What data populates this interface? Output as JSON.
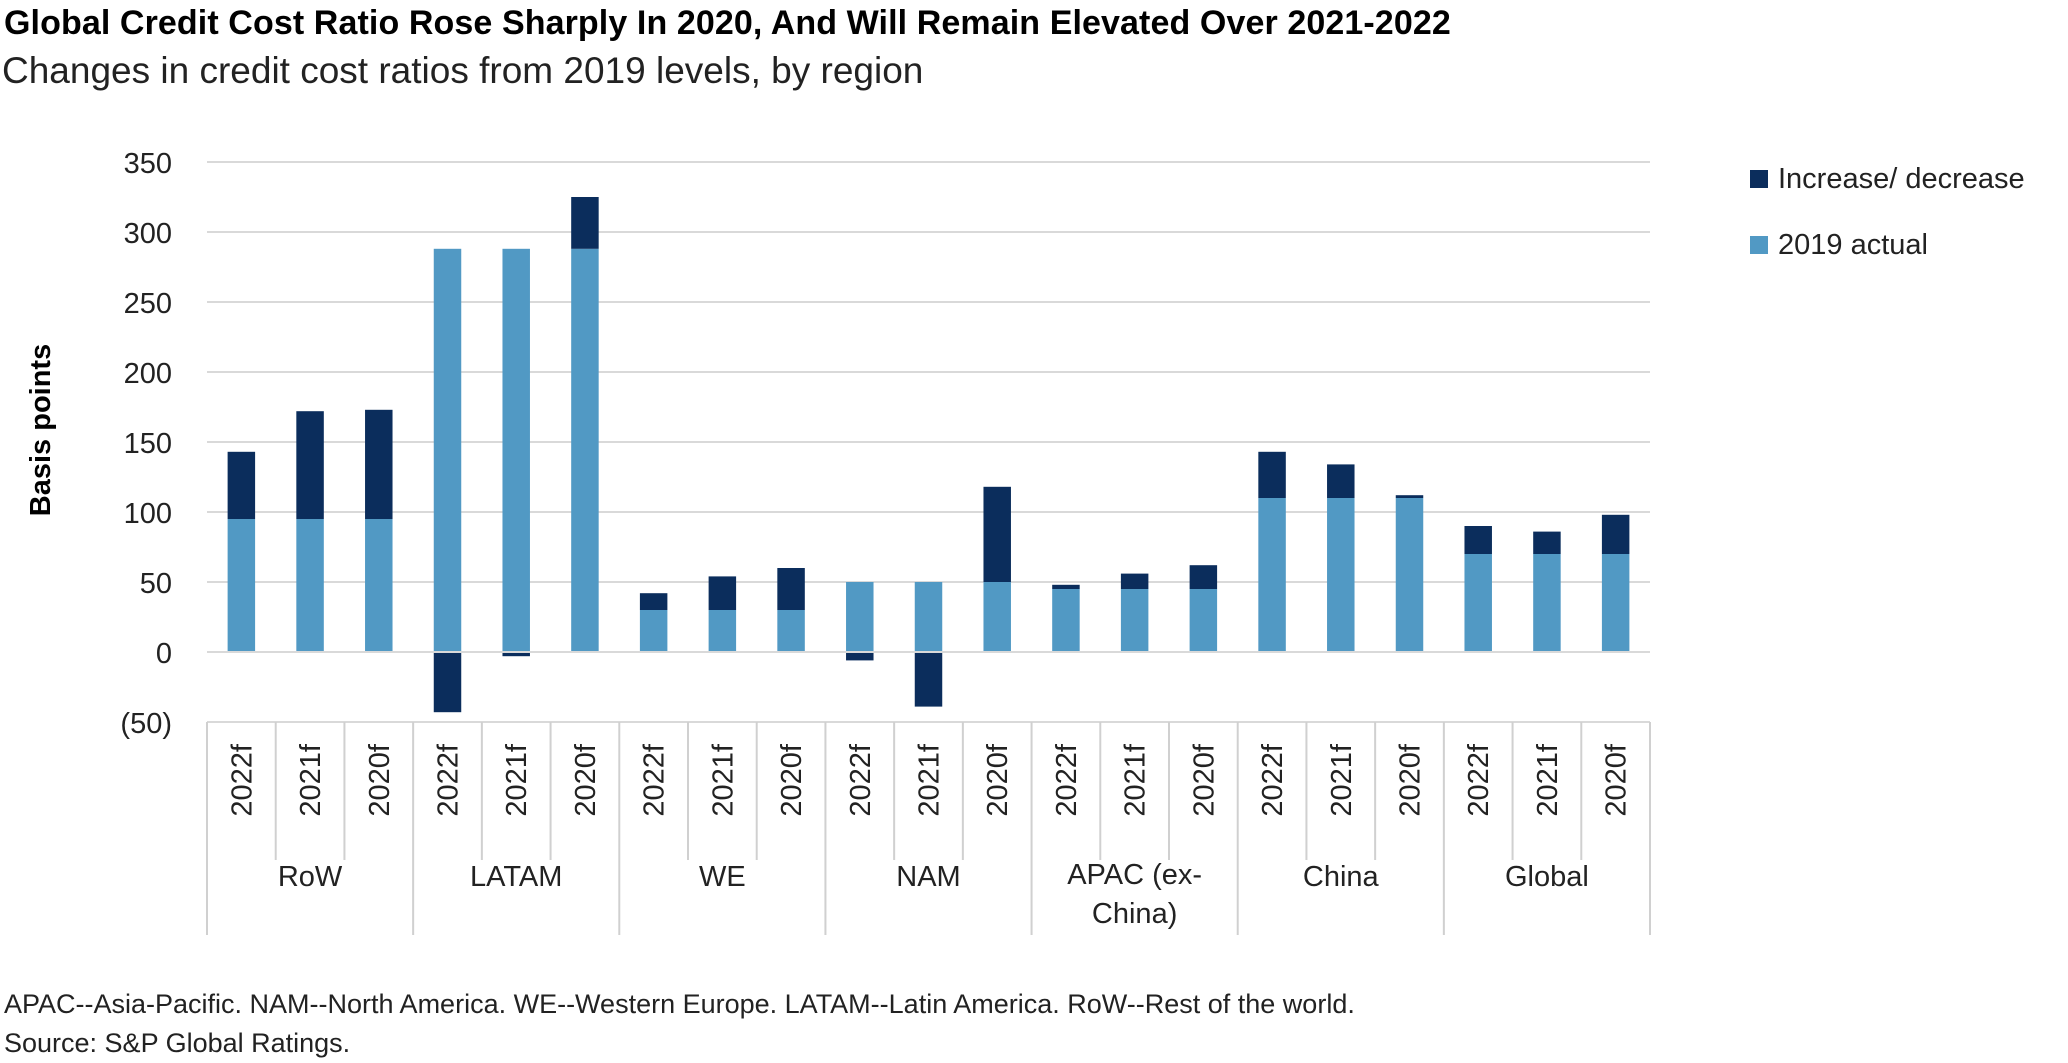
{
  "chart_data": {
    "type": "bar",
    "stacked": true,
    "title": "Global Credit Cost Ratio Rose Sharply In 2020, And Will Remain Elevated Over 2021-2022",
    "subtitle": "Changes in credit cost ratios from 2019 levels, by region",
    "ylabel": "Basis points",
    "ylim": [
      -50,
      350
    ],
    "yticks": [
      350,
      300,
      250,
      200,
      150,
      100,
      50,
      0,
      -50
    ],
    "ytick_labels": [
      "350",
      "300",
      "250",
      "200",
      "150",
      "100",
      "50",
      "0",
      "(50)"
    ],
    "grid": true,
    "legend_position": "top-right",
    "groups": [
      {
        "label_lines": [
          "RoW"
        ],
        "categories": [
          "2022f",
          "2021f",
          "2020f"
        ]
      },
      {
        "label_lines": [
          "LATAM"
        ],
        "categories": [
          "2022f",
          "2021f",
          "2020f"
        ]
      },
      {
        "label_lines": [
          "WE"
        ],
        "categories": [
          "2022f",
          "2021f",
          "2020f"
        ]
      },
      {
        "label_lines": [
          "NAM"
        ],
        "categories": [
          "2022f",
          "2021f",
          "2020f"
        ]
      },
      {
        "label_lines": [
          "APAC (ex-",
          "China)"
        ],
        "categories": [
          "2022f",
          "2021f",
          "2020f"
        ]
      },
      {
        "label_lines": [
          "China"
        ],
        "categories": [
          "2022f",
          "2021f",
          "2020f"
        ]
      },
      {
        "label_lines": [
          "Global"
        ],
        "categories": [
          "2022f",
          "2021f",
          "2020f"
        ]
      }
    ],
    "series": [
      {
        "name": "2019 actual",
        "color": "#5199c4",
        "values": [
          95,
          95,
          95,
          288,
          288,
          288,
          30,
          30,
          30,
          50,
          50,
          50,
          45,
          45,
          45,
          110,
          110,
          110,
          70,
          70,
          70
        ]
      },
      {
        "name": "Increase/ decrease",
        "color": "#0b2d5c",
        "values": [
          48,
          77,
          78,
          -43,
          -3,
          37,
          12,
          24,
          30,
          -6,
          -39,
          68,
          3,
          11,
          17,
          33,
          24,
          2,
          20,
          16,
          28
        ]
      }
    ],
    "legend": [
      {
        "name": "Increase/ decrease",
        "color": "#0b2d5c"
      },
      {
        "name": "2019 actual",
        "color": "#5199c4"
      }
    ]
  },
  "footnote": {
    "line1": "APAC--Asia-Pacific. NAM--North America. WE--Western Europe. LATAM--Latin America. RoW--Rest of the world.",
    "line2": "Source: S&P Global Ratings."
  }
}
